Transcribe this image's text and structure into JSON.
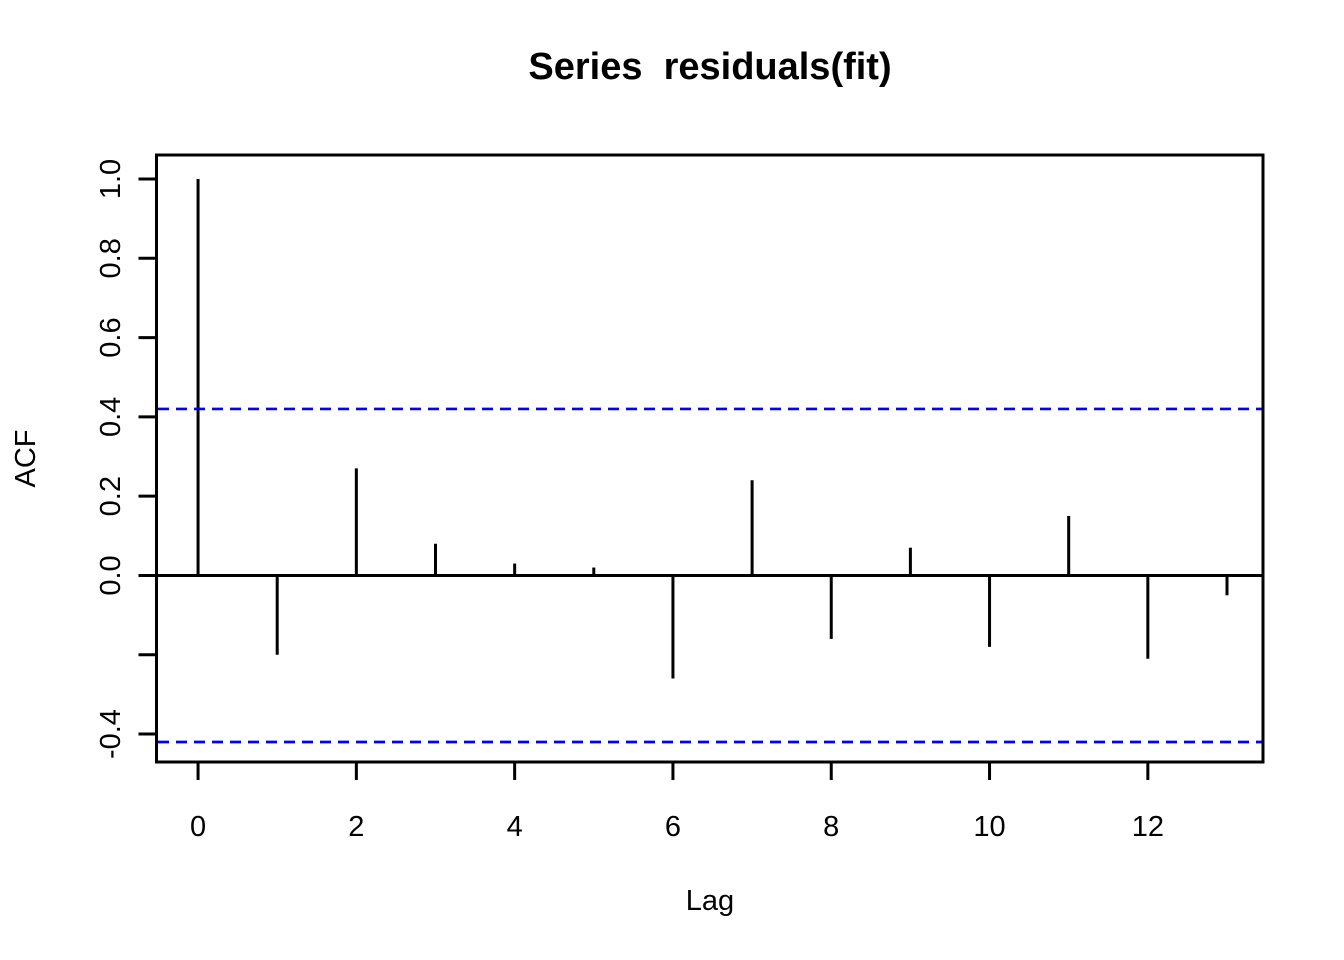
{
  "page": {
    "background_color": "#ffffff",
    "foreground_color": "#000000"
  },
  "chart_data": {
    "type": "bar",
    "subtype": "acf-spike-plot",
    "title": "Series  residuals(fit)",
    "xlabel": "Lag",
    "ylabel": "ACF",
    "x": [
      0,
      1,
      2,
      3,
      4,
      5,
      6,
      7,
      8,
      9,
      10,
      11,
      12,
      13
    ],
    "values": [
      1.0,
      -0.2,
      0.27,
      0.08,
      0.03,
      0.02,
      -0.26,
      0.24,
      -0.16,
      0.07,
      -0.18,
      0.15,
      -0.21,
      -0.05
    ],
    "baseline": 0,
    "confidence_interval": {
      "upper": 0.42,
      "lower": -0.42,
      "color": "#0000ff",
      "line_style": "dashed"
    },
    "xlim": [
      -0.525,
      13.455
    ],
    "ylim": [
      -0.4705,
      1.0605
    ],
    "x_ticks": [
      {
        "value": 0,
        "label": "0"
      },
      {
        "value": 2,
        "label": "2"
      },
      {
        "value": 4,
        "label": "4"
      },
      {
        "value": 6,
        "label": "6"
      },
      {
        "value": 8,
        "label": "8"
      },
      {
        "value": 10,
        "label": "10"
      },
      {
        "value": 12,
        "label": "12"
      }
    ],
    "y_ticks": [
      {
        "value": 1.0,
        "label": "1.0"
      },
      {
        "value": 0.8,
        "label": "0.8"
      },
      {
        "value": 0.6,
        "label": "0.6"
      },
      {
        "value": 0.4,
        "label": "0.4"
      },
      {
        "value": 0.2,
        "label": "0.2"
      },
      {
        "value": 0.0,
        "label": "0.0"
      },
      {
        "value": -0.2,
        "label": ""
      },
      {
        "value": -0.4,
        "label": "-0.4"
      }
    ],
    "grid": false,
    "legend": false,
    "series_color": "#000000",
    "box_color": "#000000"
  }
}
